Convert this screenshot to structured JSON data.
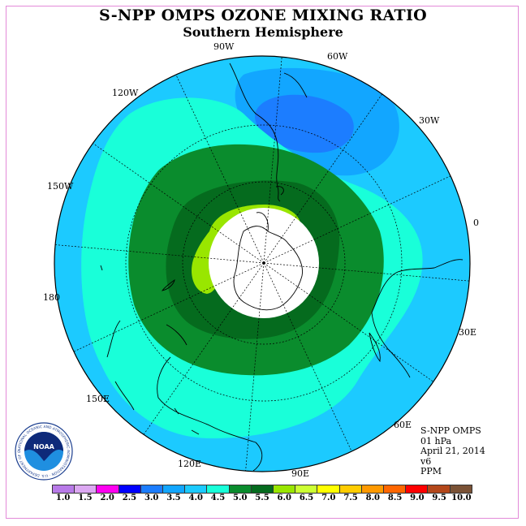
{
  "title": "S-NPP OMPS OZONE MIXING RATIO",
  "subtitle": "Southern Hemisphere",
  "longitude_labels": {
    "lon_90w": "90W",
    "lon_60w": "60W",
    "lon_120w": "120W",
    "lon_30w": "30W",
    "lon_150w": "150W",
    "lon_0": "0",
    "lon_180": "180",
    "lon_30e": "30E",
    "lon_150e": "150E",
    "lon_60e": "60E",
    "lon_120e": "120E",
    "lon_90e": "90E"
  },
  "info": {
    "instrument": "S-NPP OMPS",
    "level": "01 hPa",
    "date": "April 21, 2014",
    "version": "v6",
    "units": "PPM"
  },
  "logo": {
    "text": "NOAA",
    "ring_text": "NATIONAL OCEANIC AND ATMOSPHERIC ADMINISTRATION · U.S. DEPARTMENT OF COMMERCE"
  },
  "colorbar": {
    "colors": [
      "#b87ae8",
      "#dca8f2",
      "#ff00f0",
      "#0000ff",
      "#1c7dff",
      "#12a6ff",
      "#1ccaff",
      "#19ffd9",
      "#0a8c2d",
      "#056b1e",
      "#99e600",
      "#ccff33",
      "#ffff00",
      "#ffcc00",
      "#ff9900",
      "#ff6600",
      "#ff0000",
      "#b3471a",
      "#7a5236"
    ],
    "labels": [
      "1.0",
      "1.5",
      "2.0",
      "2.5",
      "3.0",
      "3.5",
      "4.0",
      "4.5",
      "5.0",
      "5.5",
      "6.0",
      "6.5",
      "7.0",
      "7.5",
      "8.0",
      "8.5",
      "9.0",
      "9.5",
      "10.0"
    ]
  },
  "map_colors": {
    "outer_blue": "#1ccaff",
    "dark_blue": "#1c7dff",
    "mid_blue": "#12a6ff",
    "cyan_green": "#19ffd9",
    "green": "#0a8c2d",
    "dark_green": "#056b1e",
    "yellow_green": "#99e600",
    "no_data": "#ffffff"
  }
}
